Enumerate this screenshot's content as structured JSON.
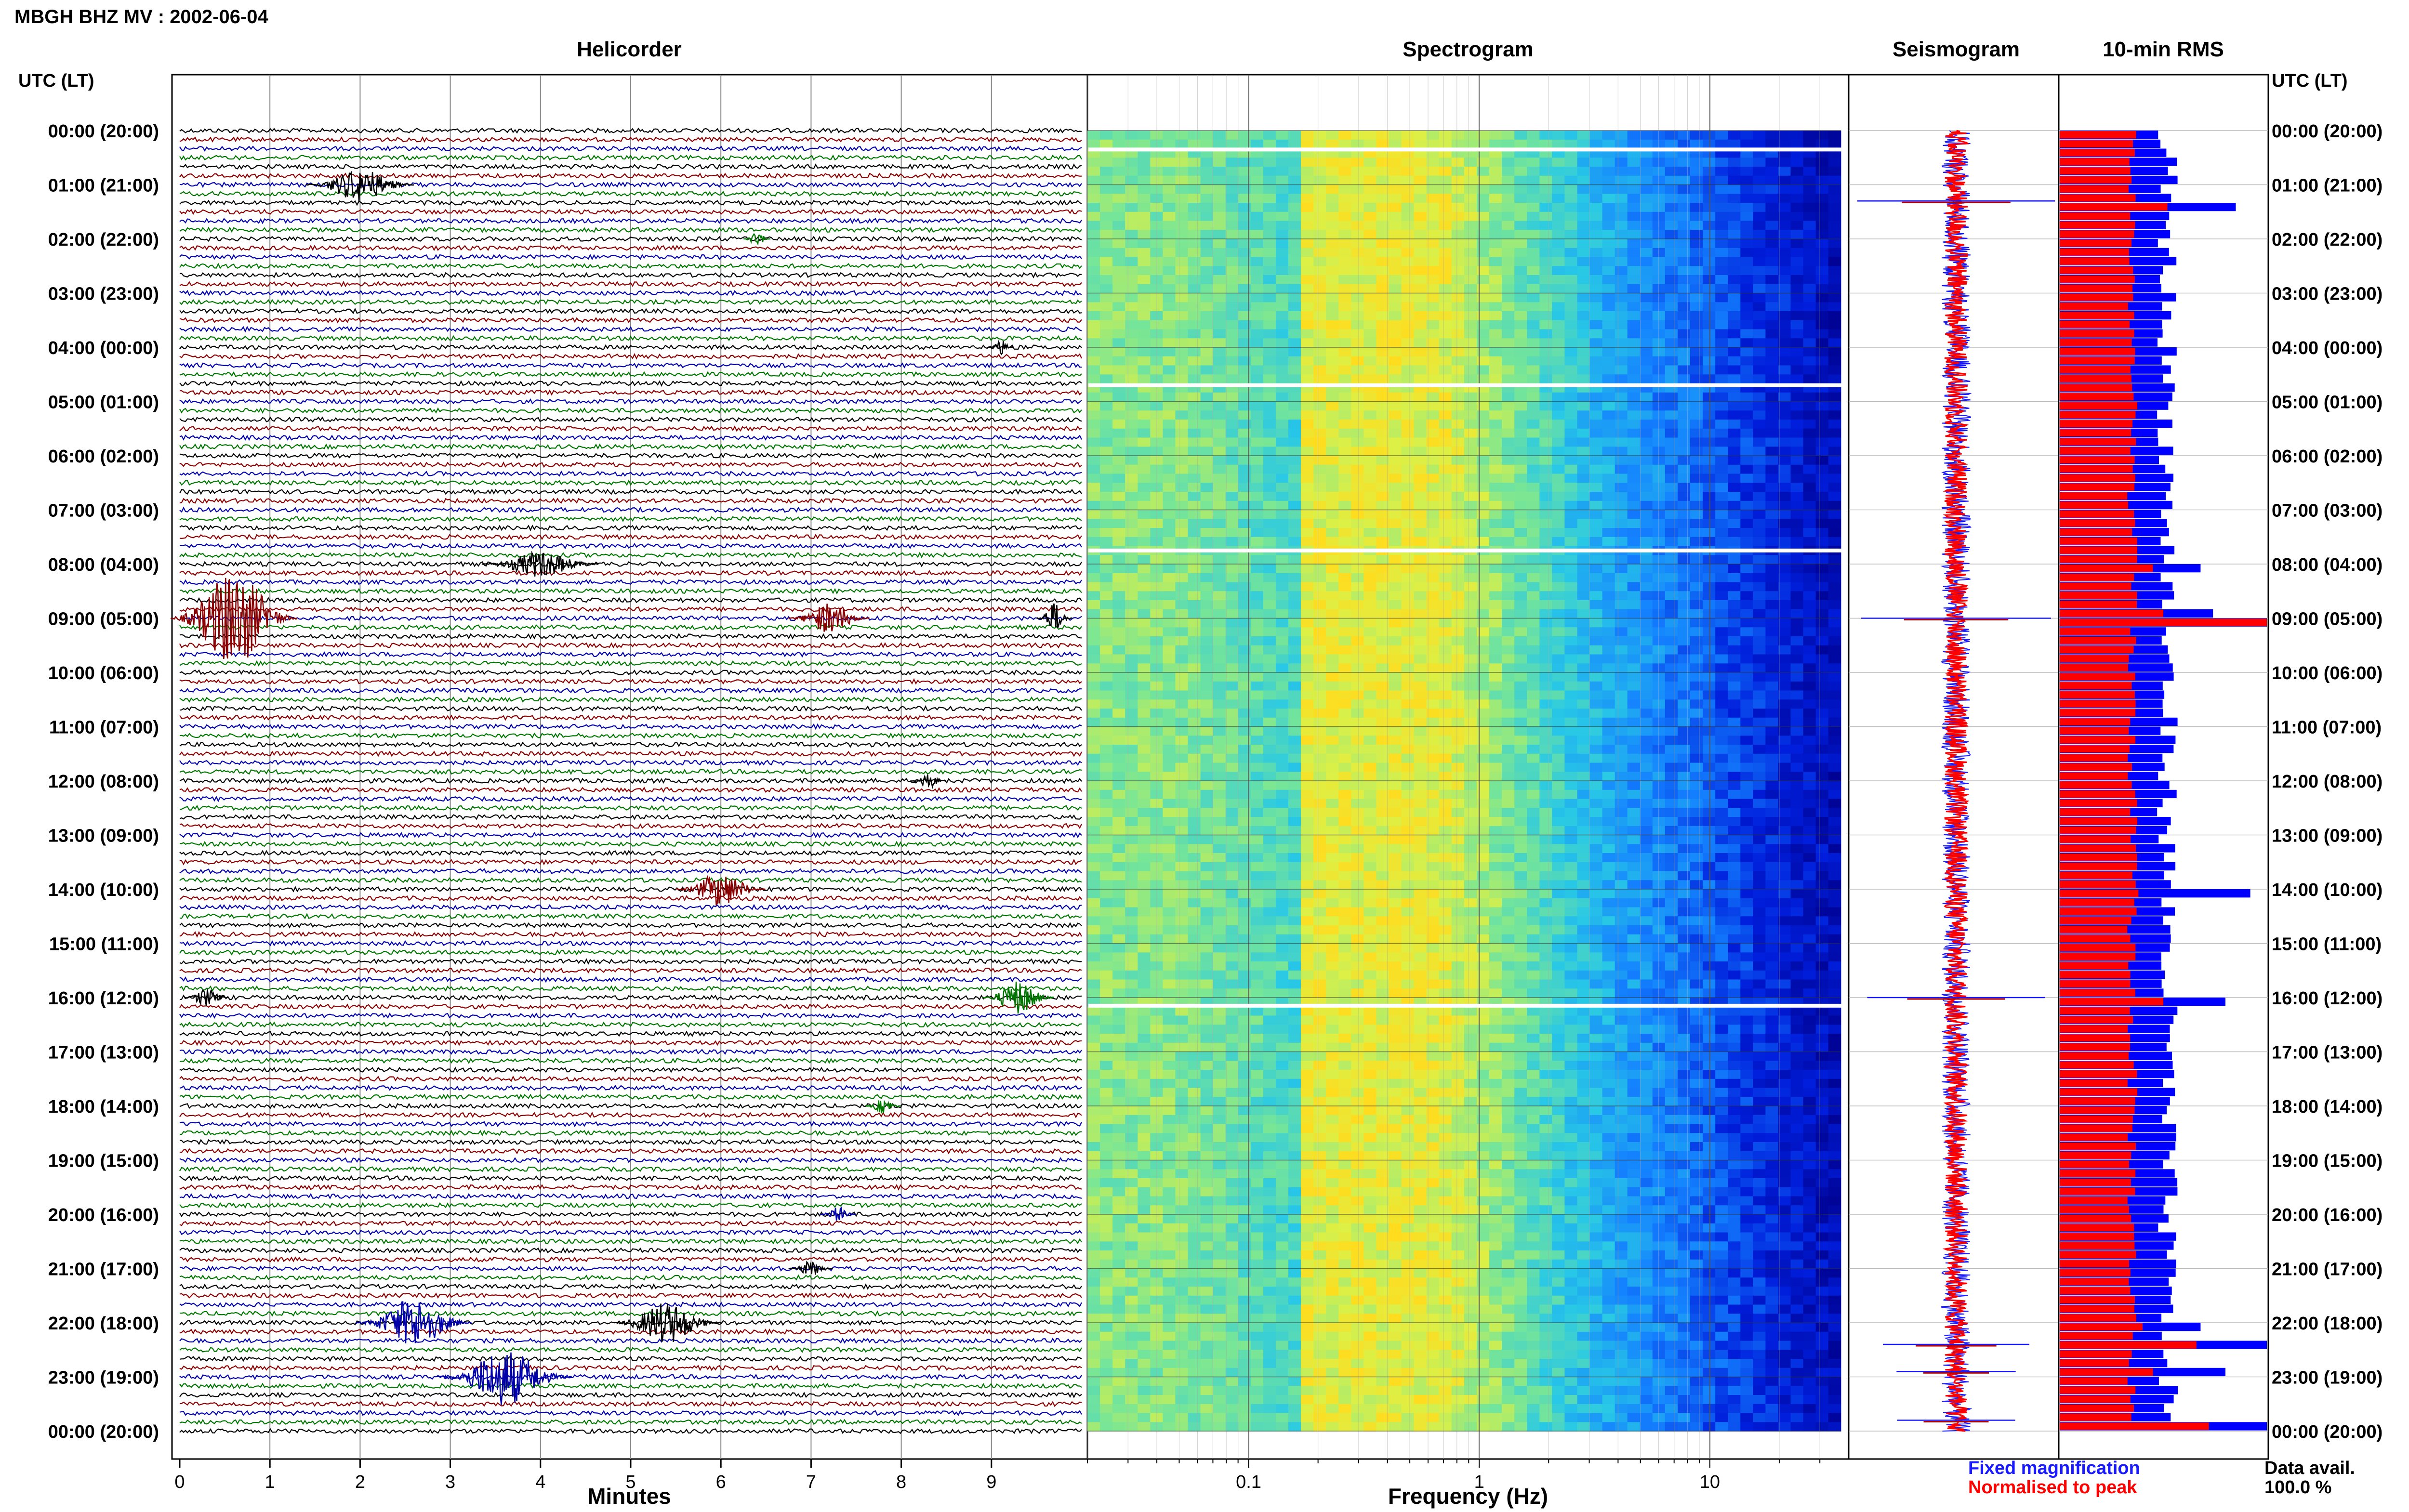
{
  "header": {
    "title": "MBGH BHZ MV : 2002-06-04"
  },
  "panels": {
    "helicorder": "Helicorder",
    "spectrogram": "Spectrogram",
    "seismogram": "Seismogram",
    "rms": "10-min RMS"
  },
  "left_axis_title": "UTC (LT)",
  "right_axis_title": "UTC (LT)",
  "hour_labels": [
    "00:00 (20:00)",
    "01:00 (21:00)",
    "02:00 (22:00)",
    "03:00 (23:00)",
    "04:00 (00:00)",
    "05:00 (01:00)",
    "06:00 (02:00)",
    "07:00 (03:00)",
    "08:00 (04:00)",
    "09:00 (05:00)",
    "10:00 (06:00)",
    "11:00 (07:00)",
    "12:00 (08:00)",
    "13:00 (09:00)",
    "14:00 (10:00)",
    "15:00 (11:00)",
    "16:00 (12:00)",
    "17:00 (13:00)",
    "18:00 (14:00)",
    "19:00 (15:00)",
    "20:00 (16:00)",
    "21:00 (17:00)",
    "22:00 (18:00)",
    "23:00 (19:00)",
    "00:00 (20:00)"
  ],
  "legend": {
    "fixed": "Fixed magnification",
    "fixed_color": "#1a1aff",
    "normalised": "Normalised to peak",
    "normalised_color": "#ff0000"
  },
  "data_avail": {
    "label": "Data avail.",
    "value": "100.0 %"
  },
  "trace_colors": [
    "#000000",
    "#8b0000",
    "#0000aa",
    "#007700"
  ],
  "chart_data": [
    {
      "type": "line",
      "panel": "helicorder",
      "xlabel": "Minutes",
      "x_ticks": [
        "0",
        "1",
        "2",
        "3",
        "4",
        "5",
        "6",
        "7",
        "8",
        "9"
      ],
      "xlim": [
        0,
        10
      ],
      "lines_per_hour": 6,
      "hours": 24,
      "events": [
        {
          "hour": 1,
          "minute": 2.0,
          "amp": 0.9,
          "dur": 1.2,
          "color": "#000000"
        },
        {
          "hour": 2,
          "minute": 6.4,
          "amp": 0.4,
          "dur": 0.3,
          "color": "#007700"
        },
        {
          "hour": 4,
          "minute": 9.1,
          "amp": 0.4,
          "dur": 0.3,
          "color": "#000000"
        },
        {
          "hour": 8,
          "minute": 4.0,
          "amp": 0.7,
          "dur": 1.3,
          "color": "#000000"
        },
        {
          "hour": 9,
          "minute": 0.6,
          "amp": 2.6,
          "dur": 1.4,
          "color": "#8b0000"
        },
        {
          "hour": 9,
          "minute": 7.2,
          "amp": 0.8,
          "dur": 0.9,
          "color": "#8b0000"
        },
        {
          "hour": 9,
          "minute": 9.7,
          "amp": 0.8,
          "dur": 0.4,
          "color": "#000000"
        },
        {
          "hour": 12,
          "minute": 8.3,
          "amp": 0.4,
          "dur": 0.4,
          "color": "#000000"
        },
        {
          "hour": 14,
          "minute": 6.0,
          "amp": 0.9,
          "dur": 1.0,
          "color": "#8b0000"
        },
        {
          "hour": 16,
          "minute": 9.3,
          "amp": 0.9,
          "dur": 0.8,
          "color": "#007700"
        },
        {
          "hour": 16,
          "minute": 0.3,
          "amp": 0.5,
          "dur": 0.5,
          "color": "#000000"
        },
        {
          "hour": 18,
          "minute": 7.8,
          "amp": 0.4,
          "dur": 0.4,
          "color": "#007700"
        },
        {
          "hour": 20,
          "minute": 7.3,
          "amp": 0.4,
          "dur": 0.4,
          "color": "#0000aa"
        },
        {
          "hour": 21,
          "minute": 7.0,
          "amp": 0.4,
          "dur": 0.5,
          "color": "#000000"
        },
        {
          "hour": 22,
          "minute": 5.4,
          "amp": 1.1,
          "dur": 1.2,
          "color": "#000000"
        },
        {
          "hour": 22,
          "minute": 2.6,
          "amp": 1.3,
          "dur": 1.3,
          "color": "#0000aa"
        },
        {
          "hour": 23,
          "minute": 3.6,
          "amp": 1.5,
          "dur": 1.5,
          "color": "#0000aa"
        }
      ]
    },
    {
      "type": "heatmap",
      "panel": "spectrogram",
      "xlabel": "Frequency (Hz)",
      "x_scale": "log",
      "xlim": [
        0.02,
        40
      ],
      "x_ticks": [
        0.1,
        1,
        10
      ],
      "x_tick_labels": [
        "0.1",
        "1",
        "10"
      ],
      "gaps_hour": [
        0.35,
        4.7,
        7.75,
        16.15
      ]
    },
    {
      "type": "line",
      "panel": "seismogram",
      "series": [
        {
          "name": "Fixed magnification",
          "color": "#1a1aff"
        },
        {
          "name": "Normalised to peak",
          "color": "#ff0000"
        }
      ],
      "spikes_hour": [
        1.3,
        9.0,
        16.0,
        22.4,
        22.9,
        23.8
      ]
    },
    {
      "type": "bar",
      "panel": "rms",
      "orientation": "horizontal",
      "series": [
        {
          "name": "Fixed magnification",
          "color": "#0000ff"
        },
        {
          "name": "Normalised to peak",
          "color": "#ff0000"
        }
      ],
      "intervals": 144,
      "base_fixed": 0.52,
      "base_norm": 0.35,
      "peaks": [
        {
          "hour": 1.35,
          "fixed": 0.85,
          "norm": 0.52
        },
        {
          "hour": 8.0,
          "fixed": 0.68,
          "norm": 0.45
        },
        {
          "hour": 8.85,
          "fixed": 0.74,
          "norm": 0.5
        },
        {
          "hour": 9.0,
          "fixed": 1.0,
          "norm": 1.0
        },
        {
          "hour": 14.0,
          "fixed": 0.92,
          "norm": 0.38
        },
        {
          "hour": 16.0,
          "fixed": 0.8,
          "norm": 0.5
        },
        {
          "hour": 22.0,
          "fixed": 0.68,
          "norm": 0.4
        },
        {
          "hour": 22.4,
          "fixed": 1.0,
          "norm": 0.66
        },
        {
          "hour": 22.9,
          "fixed": 0.8,
          "norm": 0.45
        },
        {
          "hour": 23.8,
          "fixed": 1.0,
          "norm": 0.72
        }
      ]
    }
  ]
}
